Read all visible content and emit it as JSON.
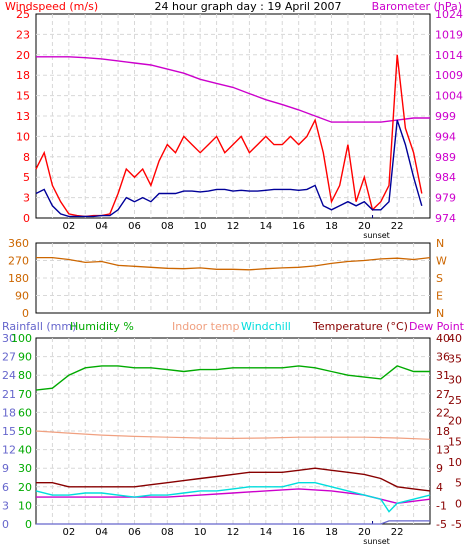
{
  "colors": {
    "windspeed": "#ff0000",
    "windavg": "#000099",
    "barometer": "#cc00cc",
    "direction": "#cc6600",
    "rainfall": "#6666cc",
    "humidity": "#00aa00",
    "indoor": "#f0a080",
    "windchill": "#00dddd",
    "temperature": "#880000",
    "dewpoint": "#cc00cc",
    "grid": "#d8d8d8",
    "sunset": "#000080"
  },
  "chart_data": [
    {
      "type": "line",
      "title": "24 hour graph day : 19 April 2007",
      "ylabel": "Windspeed (m/s)",
      "y2label": "Barometer (hPa)",
      "x_ticks": [
        "02",
        "04",
        "06",
        "08",
        "10",
        "12",
        "14",
        "16",
        "18",
        "20",
        "22"
      ],
      "xlim": [
        0,
        24
      ],
      "ylim": [
        0,
        25
      ],
      "y_ticks": [
        "0",
        "3",
        "5",
        "8",
        "10",
        "13",
        "15",
        "18",
        "20",
        "23",
        "25"
      ],
      "y2lim": [
        974,
        1024
      ],
      "y2_ticks": [
        "974",
        "979",
        "984",
        "989",
        "994",
        "999",
        "1004",
        "1009",
        "1014",
        "1019",
        "1024"
      ],
      "annotation": "sunset",
      "sunset_hour": 20.5,
      "grid": true,
      "series": [
        {
          "name": "Windspeed (m/s)",
          "axis": "left",
          "role": "gust",
          "x": [
            0,
            0.5,
            1,
            1.5,
            2,
            2.5,
            3,
            3.5,
            4,
            4.5,
            5,
            5.5,
            6,
            6.5,
            7,
            7.5,
            8,
            8.5,
            9,
            9.5,
            10,
            10.5,
            11,
            11.5,
            12,
            12.5,
            13,
            13.5,
            14,
            14.5,
            15,
            15.5,
            16,
            16.5,
            17,
            17.5,
            18,
            18.5,
            19,
            19.5,
            20,
            20.5,
            21,
            21.5,
            22,
            22.5,
            23,
            23.5
          ],
          "values": [
            6,
            8,
            4,
            2,
            0.5,
            0.3,
            0.2,
            0.3,
            0.3,
            0.5,
            3,
            6,
            5,
            6,
            4,
            7,
            9,
            8,
            10,
            9,
            8,
            9,
            10,
            8,
            9,
            10,
            8,
            9,
            10,
            9,
            9,
            10,
            9,
            10,
            12,
            8,
            2,
            4,
            9,
            2,
            5,
            1,
            2,
            4,
            20,
            11,
            8,
            3
          ]
        },
        {
          "name": "Average windspeed",
          "axis": "left",
          "role": "average",
          "x": [
            0,
            0.5,
            1,
            1.5,
            2,
            2.5,
            3,
            3.5,
            4,
            4.5,
            5,
            5.5,
            6,
            6.5,
            7,
            7.5,
            8,
            8.5,
            9,
            9.5,
            10,
            10.5,
            11,
            11.5,
            12,
            12.5,
            13,
            13.5,
            14,
            14.5,
            15,
            15.5,
            16,
            16.5,
            17,
            17.5,
            18,
            18.5,
            19,
            19.5,
            20,
            20.5,
            21,
            21.5,
            22,
            22.5,
            23,
            23.5
          ],
          "values": [
            3,
            3.5,
            1.5,
            0.5,
            0.2,
            0.2,
            0.2,
            0.2,
            0.3,
            0.3,
            1,
            2.5,
            2,
            2.5,
            2,
            3,
            3,
            3,
            3.3,
            3.3,
            3.2,
            3.3,
            3.5,
            3.5,
            3.3,
            3.4,
            3.3,
            3.3,
            3.4,
            3.5,
            3.5,
            3.5,
            3.4,
            3.5,
            4,
            1.5,
            1,
            1.5,
            2,
            1.5,
            2,
            1,
            1,
            2,
            12,
            9,
            5,
            1.5
          ]
        },
        {
          "name": "Barometer (hPa)",
          "axis": "right",
          "x": [
            0,
            1,
            2,
            3,
            4,
            5,
            6,
            7,
            8,
            9,
            10,
            11,
            12,
            13,
            14,
            15,
            16,
            17,
            18,
            19,
            20,
            21,
            22,
            23,
            24
          ],
          "values": [
            1013.5,
            1013.5,
            1013.5,
            1013.3,
            1013,
            1012.5,
            1012,
            1011.5,
            1010.5,
            1009.5,
            1008,
            1007,
            1006,
            1004.5,
            1003,
            1001.8,
            1000.5,
            999,
            997.5,
            997.5,
            997.5,
            997.5,
            998,
            998.5,
            998.5
          ]
        }
      ]
    },
    {
      "type": "line",
      "title": "",
      "ylim": [
        0,
        360
      ],
      "y_ticks": [
        "0",
        "90",
        "180",
        "270",
        "360"
      ],
      "y2_ticks": [
        "N",
        "E",
        "S",
        "W",
        "N"
      ],
      "x_ticks": [],
      "annotation": "",
      "grid": true,
      "series": [
        {
          "name": "Wind direction",
          "axis": "left",
          "x": [
            0,
            1,
            2,
            3,
            4,
            5,
            6,
            7,
            8,
            9,
            10,
            11,
            12,
            13,
            14,
            15,
            16,
            17,
            18,
            19,
            20,
            21,
            22,
            23,
            24
          ],
          "values": [
            285,
            285,
            275,
            260,
            265,
            245,
            240,
            235,
            230,
            228,
            232,
            225,
            225,
            222,
            228,
            232,
            235,
            242,
            255,
            265,
            270,
            278,
            282,
            275,
            285
          ]
        }
      ]
    },
    {
      "type": "line",
      "title": "",
      "legend": [
        "Rainfall (mm)",
        "Humidity %",
        "Indoor temp",
        "Windchill",
        "Temperature (°C)",
        "Dew Point"
      ],
      "x_ticks": [
        "02",
        "04",
        "06",
        "08",
        "10",
        "12",
        "14",
        "16",
        "18",
        "20",
        "22"
      ],
      "xlim": [
        0,
        24
      ],
      "rain_ticks": [
        "0",
        "3",
        "6",
        "9",
        "12",
        "15",
        "18",
        "21",
        "24",
        "27",
        "30"
      ],
      "humidity_ticks": [
        "0",
        "10",
        "20",
        "30",
        "40",
        "50",
        "60",
        "70",
        "80",
        "90",
        "100"
      ],
      "temp_ticks": [
        "-5",
        "-1",
        "4",
        "9",
        "13",
        "18",
        "22",
        "27",
        "31",
        "36",
        "40"
      ],
      "temp_f_ticks": [
        "-5",
        "0",
        "5",
        "10",
        "15",
        "20",
        "25",
        "30",
        "35",
        "40"
      ],
      "annotation": "sunset",
      "sunset_hour": 20.5,
      "grid": true,
      "series": [
        {
          "name": "Rainfall (mm)",
          "axis": "rain",
          "x": [
            0,
            6,
            12,
            18,
            21,
            21.5,
            24
          ],
          "values": [
            0,
            0,
            0,
            0,
            0,
            0.5,
            0.5
          ]
        },
        {
          "name": "Humidity %",
          "axis": "humidity",
          "x": [
            0,
            1,
            2,
            3,
            4,
            5,
            6,
            7,
            8,
            9,
            10,
            11,
            12,
            13,
            14,
            15,
            16,
            17,
            18,
            19,
            20,
            21,
            22,
            23,
            24
          ],
          "values": [
            72,
            73,
            80,
            84,
            85,
            85,
            84,
            84,
            83,
            82,
            83,
            83,
            84,
            84,
            84,
            84,
            85,
            84,
            82,
            80,
            79,
            78,
            85,
            82,
            82
          ]
        },
        {
          "name": "Indoor temp",
          "axis": "temp",
          "x": [
            0,
            2,
            4,
            6,
            8,
            10,
            12,
            14,
            16,
            18,
            20,
            22,
            24
          ],
          "values": [
            17.5,
            17,
            16.5,
            16.2,
            16,
            15.8,
            15.7,
            15.8,
            16,
            16,
            16,
            15.8,
            15.5
          ]
        },
        {
          "name": "Windchill",
          "axis": "temp",
          "x": [
            0,
            1,
            2,
            3,
            4,
            5,
            6,
            7,
            8,
            9,
            10,
            11,
            12,
            13,
            14,
            15,
            16,
            17,
            18,
            19,
            20,
            21,
            21.5,
            22,
            23,
            24
          ],
          "values": [
            3,
            2,
            2,
            2.5,
            2.5,
            2,
            1.5,
            2,
            2,
            2.5,
            3,
            3,
            3.5,
            4,
            4,
            4,
            5,
            5,
            4,
            3,
            2,
            1,
            -2,
            0,
            1,
            2
          ]
        },
        {
          "name": "Temperature (°C)",
          "axis": "temp",
          "x": [
            0,
            1,
            2,
            3,
            4,
            5,
            6,
            7,
            8,
            9,
            10,
            11,
            12,
            13,
            14,
            15,
            16,
            17,
            18,
            19,
            20,
            21,
            22,
            23,
            24
          ],
          "values": [
            5,
            5,
            4,
            4,
            4,
            4,
            4,
            4.5,
            5,
            5.5,
            6,
            6.5,
            7,
            7.5,
            7.5,
            7.5,
            8,
            8.5,
            8,
            7.5,
            7,
            6,
            4,
            3.5,
            3
          ]
        },
        {
          "name": "Dew Point",
          "axis": "temp",
          "x": [
            0,
            2,
            4,
            6,
            8,
            10,
            12,
            14,
            16,
            18,
            20,
            22,
            24
          ],
          "values": [
            1.5,
            1.5,
            1.5,
            1.5,
            1.5,
            2,
            2.5,
            3,
            3.5,
            3,
            2,
            0,
            1
          ]
        }
      ]
    }
  ]
}
